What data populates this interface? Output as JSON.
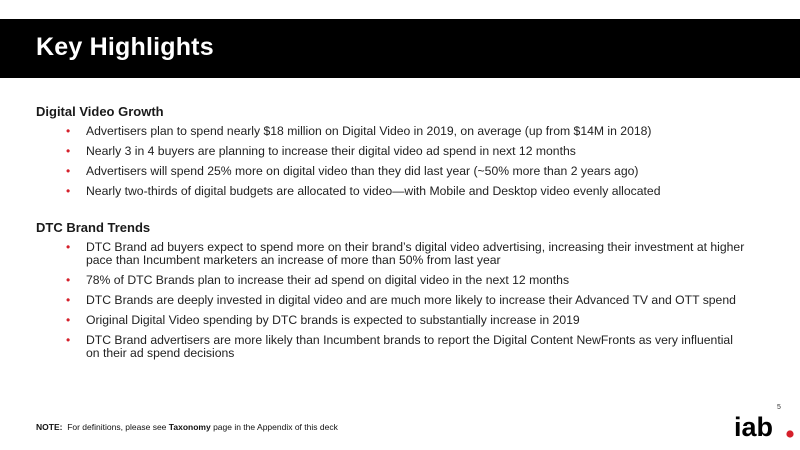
{
  "title": "Key Highlights",
  "sections": [
    {
      "heading": "Digital Video Growth",
      "bullets": [
        "Advertisers plan to spend nearly $18 million on Digital Video in 2019, on average (up from $14M in 2018)",
        "Nearly 3 in 4 buyers are planning to increase their digital video ad spend in next 12 months",
        "Advertisers will spend 25% more on digital video than they did last year (~50% more than 2 years ago)",
        "Nearly two-thirds of digital budgets are allocated to video—with Mobile and Desktop video evenly allocated"
      ]
    },
    {
      "heading": "DTC Brand Trends",
      "bullets": [
        "DTC Brand ad buyers expect to spend more on their brand’s digital video advertising, increasing their investment at higher pace than Incumbent marketers an increase of more than 50% from last year",
        "78% of DTC Brands plan to increase their ad spend on digital video in the next 12 months",
        "DTC Brands are deeply invested in digital video and are much more likely to increase their Advanced TV and OTT spend",
        "Original Digital Video spending by DTC brands is expected to substantially increase in 2019",
        "DTC Brand advertisers are more likely than Incumbent brands to report the Digital Content NewFronts as very influential on their ad spend decisions"
      ]
    }
  ],
  "note": {
    "label": "NOTE:",
    "prefix": "For definitions, please see",
    "link_text": "Taxonomy",
    "suffix": "page in the Appendix of this deck"
  },
  "page_number": "5",
  "logo": {
    "text": "iab",
    "dot_color": "#d5202b"
  },
  "colors": {
    "title_bar": "#000000",
    "bullet": "#d5202b"
  }
}
